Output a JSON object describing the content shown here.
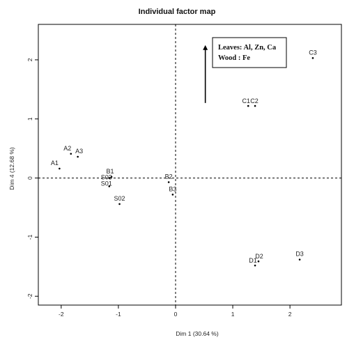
{
  "chart_data": {
    "type": "scatter",
    "title": "Individual factor map",
    "xlabel": "Dim 1 (30.64 %)",
    "ylabel": "Dim 4 (12.68 %)",
    "xlim": [
      -2.4,
      2.9
    ],
    "ylim": [
      -2.15,
      2.6
    ],
    "xticks": [
      -2,
      -1,
      0,
      1,
      2
    ],
    "yticks": [
      -2,
      -1,
      0,
      1,
      2
    ],
    "xtick_labels": [
      "-2",
      "-1",
      "0",
      "1",
      "2"
    ],
    "ytick_labels": [
      "-2",
      "-1",
      "0",
      "1",
      "2"
    ],
    "grid": false,
    "reference_lines": {
      "x": 0,
      "y": 0,
      "style": "dashed"
    },
    "points": [
      {
        "label": "A1",
        "x": -2.03,
        "y": 0.16
      },
      {
        "label": "A2",
        "x": -1.83,
        "y": 0.41
      },
      {
        "label": "A3",
        "x": -1.71,
        "y": 0.36
      },
      {
        "label": "B1",
        "x": -1.12,
        "y": 0.02
      },
      {
        "label": "S03",
        "x": -1.16,
        "y": 0.0
      },
      {
        "label": "S01",
        "x": -1.16,
        "y": -0.14
      },
      {
        "label": "S02",
        "x": -0.98,
        "y": -0.44
      },
      {
        "label": "B2",
        "x": -0.12,
        "y": -0.07
      },
      {
        "label": "B3",
        "x": -0.05,
        "y": -0.28
      },
      {
        "label": "C1",
        "x": 1.27,
        "y": 1.22
      },
      {
        "label": "C2",
        "x": 1.39,
        "y": 1.22
      },
      {
        "label": "C3",
        "x": 2.4,
        "y": 2.03
      },
      {
        "label": "D1",
        "x": 1.39,
        "y": -1.48
      },
      {
        "label": "D2",
        "x": 1.45,
        "y": -1.41
      },
      {
        "label": "D3",
        "x": 2.17,
        "y": -1.38
      }
    ],
    "annotation": {
      "lines": [
        "Leaves: Al, Zn, Ca",
        "Wood : Fe"
      ],
      "arrow": {
        "x": 0.52,
        "y_from": 1.27,
        "y_to": 2.25
      }
    }
  }
}
